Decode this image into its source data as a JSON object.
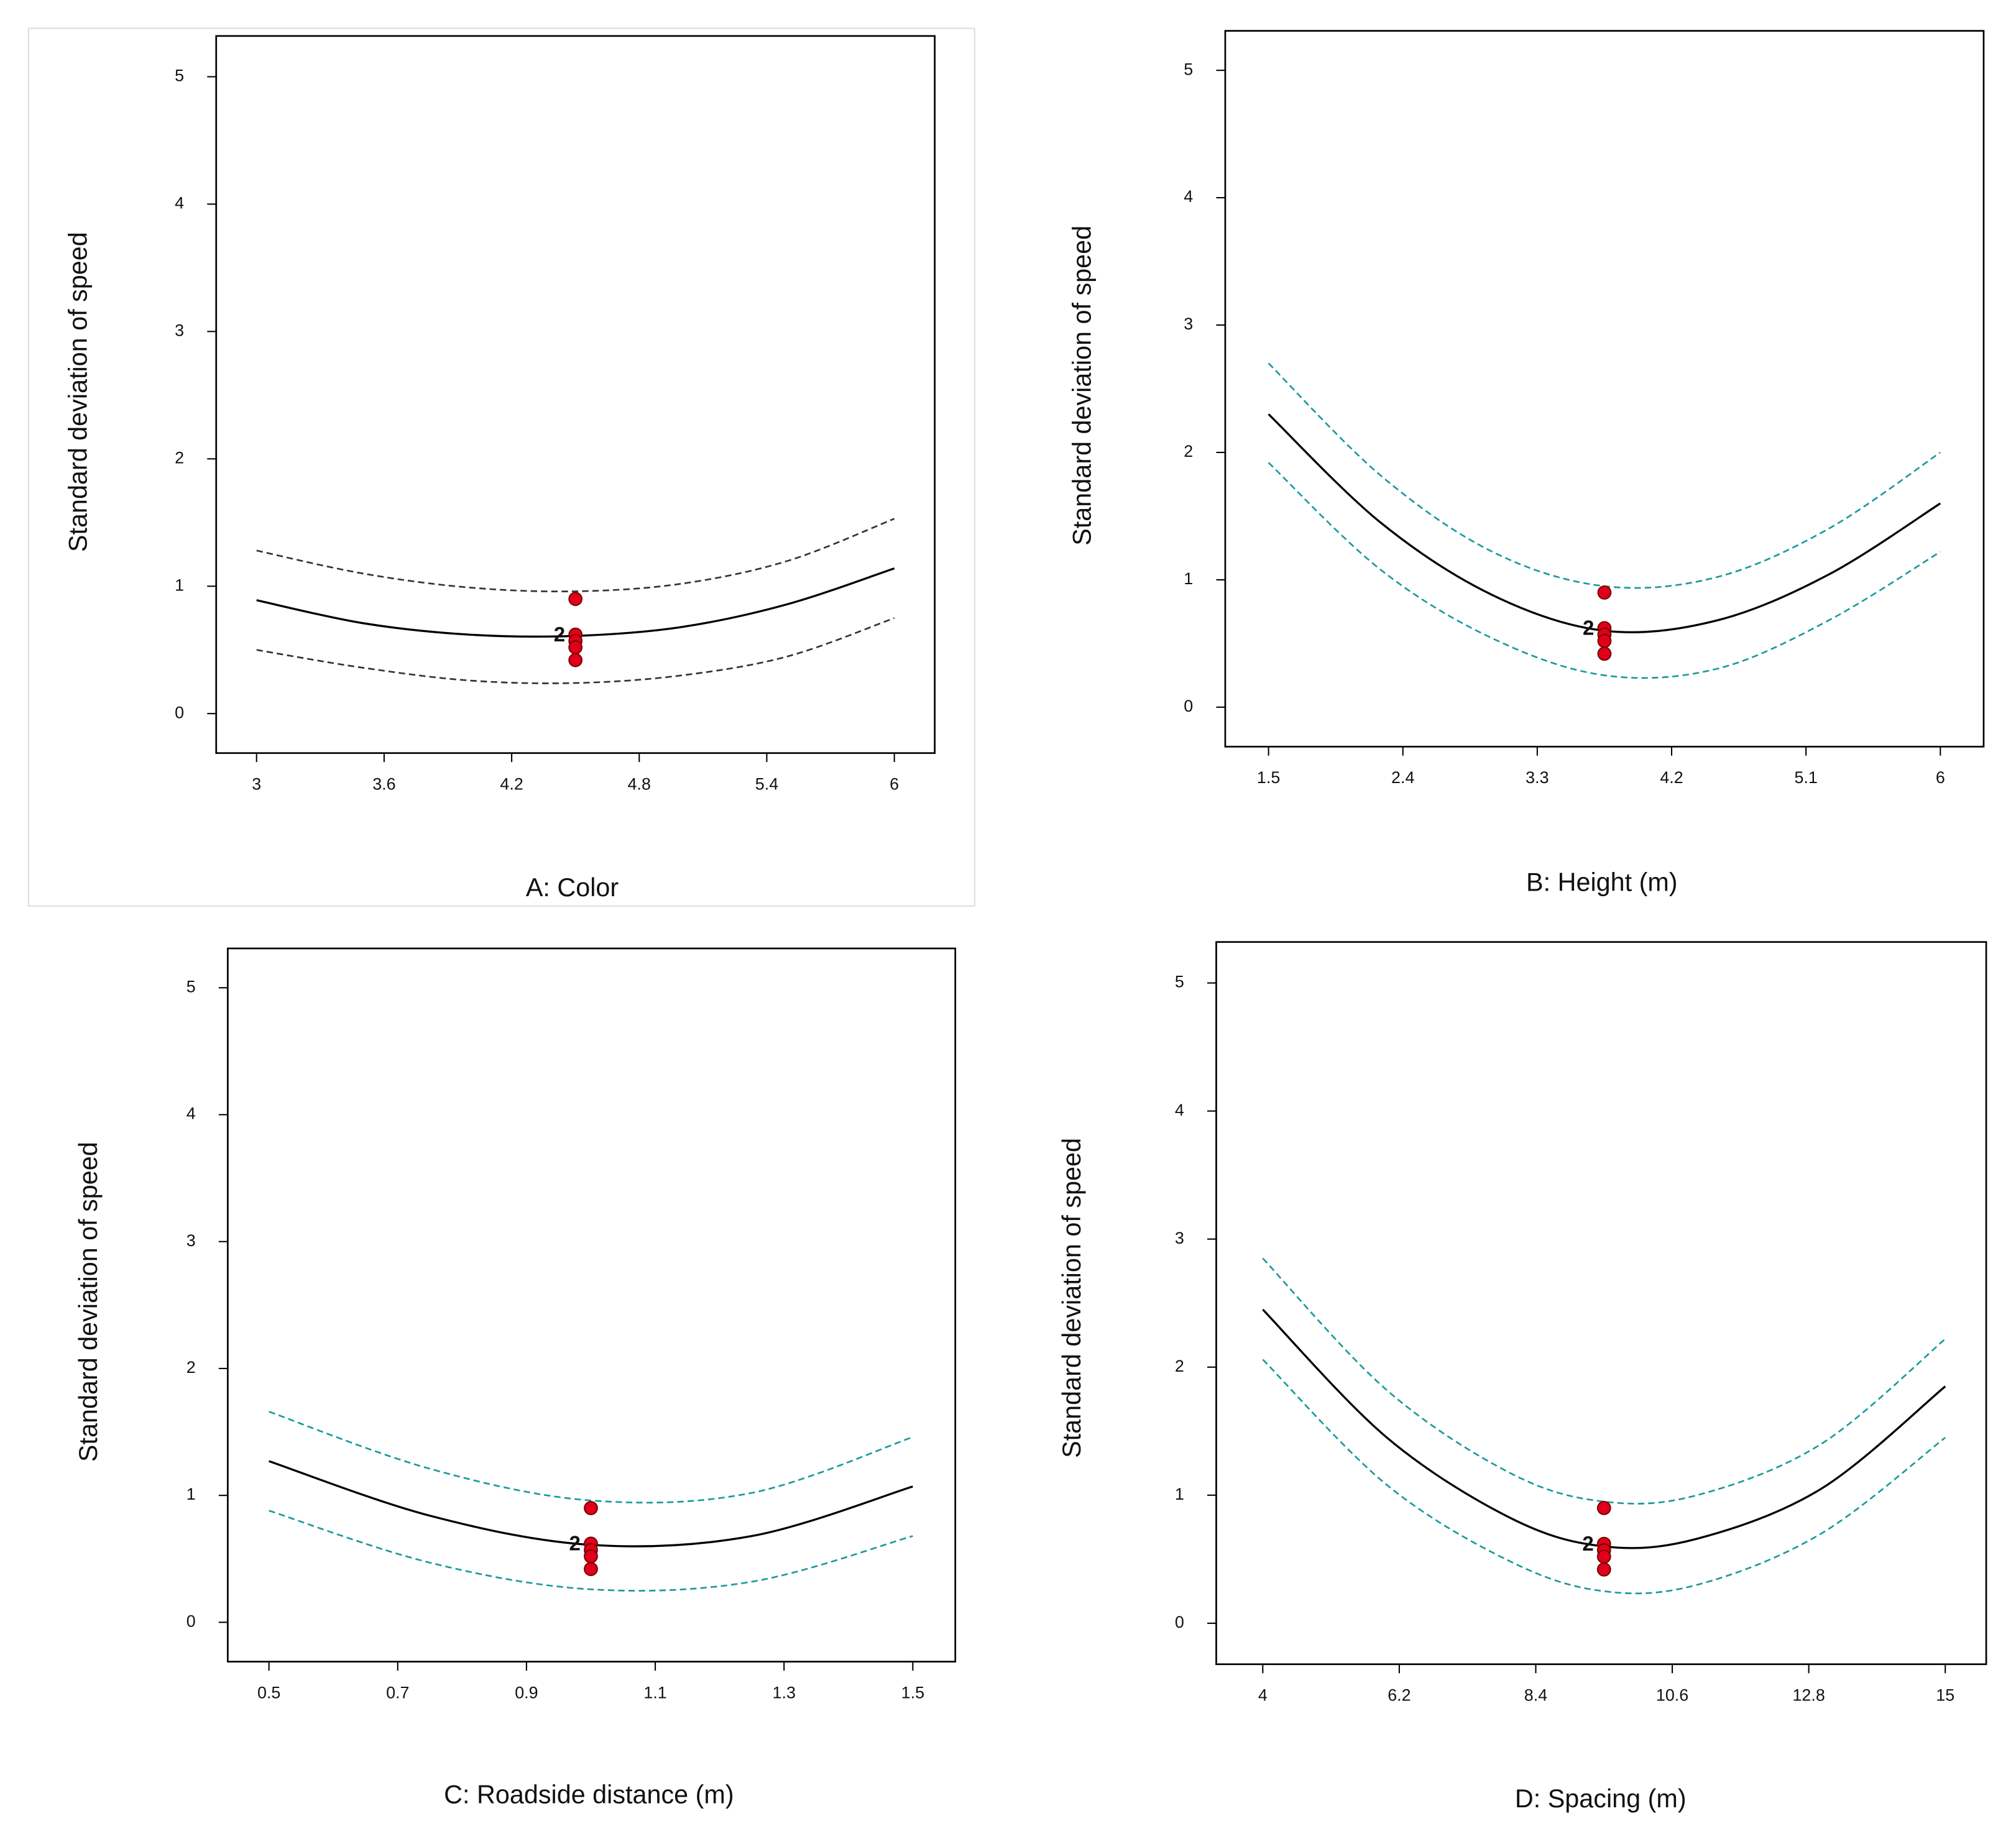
{
  "chart_data": [
    {
      "type": "line",
      "x_label": "A: Color",
      "y_label": "Standard deviation of speed",
      "x": [
        3,
        3.5,
        4,
        4.5,
        5,
        5.5,
        6
      ],
      "series": [
        {
          "color": "#000000",
          "style": "solid",
          "values": [
            0.89,
            0.71,
            0.62,
            0.61,
            0.68,
            0.86,
            1.14
          ]
        },
        {
          "color": "#333333",
          "style": "dashed",
          "values": [
            1.28,
            1.1,
            0.99,
            0.96,
            1.02,
            1.2,
            1.53
          ]
        },
        {
          "color": "#333333",
          "style": "dashed",
          "values": [
            0.5,
            0.36,
            0.26,
            0.24,
            0.3,
            0.45,
            0.75
          ]
        }
      ],
      "points": {
        "color": "#e0001a",
        "x": [
          4.5,
          4.5,
          4.5,
          4.5,
          4.5
        ],
        "y": [
          0.9,
          0.62,
          0.57,
          0.52,
          0.42
        ]
      },
      "annotation": {
        "text": "2",
        "x": 4.5,
        "y": 0.61
      },
      "xlim": [
        2.81,
        6.19
      ],
      "ylim": [
        -0.31,
        5.32
      ],
      "xticks": [
        3,
        3.6,
        4.2,
        4.8,
        5.4,
        6
      ],
      "yticks": [
        0,
        1,
        2,
        3,
        4,
        5
      ]
    },
    {
      "type": "line",
      "x_label": "B: Height (m)",
      "y_label": "Standard deviation of speed",
      "x": [
        1.5,
        2.25,
        3,
        3.75,
        4.5,
        5.25,
        6
      ],
      "series": [
        {
          "color": "#000000",
          "style": "solid",
          "values": [
            2.3,
            1.45,
            0.88,
            0.6,
            0.68,
            1.04,
            1.6
          ]
        },
        {
          "color": "#1a9a9a",
          "style": "dashed",
          "values": [
            2.7,
            1.82,
            1.22,
            0.95,
            1.02,
            1.4,
            2.0
          ]
        },
        {
          "color": "#1a9a9a",
          "style": "dashed",
          "values": [
            1.92,
            1.08,
            0.54,
            0.25,
            0.3,
            0.68,
            1.22
          ]
        }
      ],
      "points": {
        "color": "#e0001a",
        "x": [
          3.75,
          3.75,
          3.75,
          3.75,
          3.75
        ],
        "y": [
          0.9,
          0.62,
          0.57,
          0.52,
          0.42
        ]
      },
      "annotation": {
        "text": "2",
        "x": 3.75,
        "y": 0.61
      },
      "xlim": [
        1.21,
        6.29
      ],
      "ylim": [
        -0.31,
        5.31
      ],
      "xticks": [
        1.5,
        2.4,
        3.3,
        4.2,
        5.1,
        6
      ],
      "yticks": [
        0,
        1,
        2,
        3,
        4,
        5
      ]
    },
    {
      "type": "line",
      "x_label": "C: Roadside distance (m)",
      "y_label": "Standard deviation of speed",
      "x": [
        0.5,
        0.75,
        1.0,
        1.25,
        1.5
      ],
      "series": [
        {
          "color": "#000000",
          "style": "solid",
          "values": [
            1.27,
            0.84,
            0.61,
            0.68,
            1.07
          ]
        },
        {
          "color": "#1a9a9a",
          "style": "dashed",
          "values": [
            1.66,
            1.21,
            0.96,
            1.02,
            1.46
          ]
        },
        {
          "color": "#1a9a9a",
          "style": "dashed",
          "values": [
            0.88,
            0.47,
            0.26,
            0.32,
            0.68
          ]
        }
      ],
      "points": {
        "color": "#e0001a",
        "x": [
          1.0,
          1.0,
          1.0,
          1.0,
          1.0
        ],
        "y": [
          0.9,
          0.62,
          0.57,
          0.52,
          0.42
        ]
      },
      "annotation": {
        "text": "2",
        "x": 1.0,
        "y": 0.61
      },
      "xlim": [
        0.436,
        1.566
      ],
      "ylim": [
        -0.31,
        5.31
      ],
      "xticks": [
        0.5,
        0.7,
        0.9,
        1.1,
        1.3,
        1.5
      ],
      "yticks": [
        0,
        1,
        2,
        3,
        4,
        5
      ]
    },
    {
      "type": "line",
      "x_label": "D: Spacing (m)",
      "y_label": "Standard deviation of speed",
      "x": [
        4,
        6,
        8,
        9.5,
        11,
        13,
        15
      ],
      "series": [
        {
          "color": "#000000",
          "style": "solid",
          "values": [
            2.45,
            1.45,
            0.82,
            0.6,
            0.66,
            1.05,
            1.85
          ]
        },
        {
          "color": "#1a9a9a",
          "style": "dashed",
          "values": [
            2.85,
            1.82,
            1.17,
            0.95,
            1.0,
            1.4,
            2.22
          ]
        },
        {
          "color": "#1a9a9a",
          "style": "dashed",
          "values": [
            2.06,
            1.08,
            0.48,
            0.25,
            0.3,
            0.7,
            1.45
          ]
        }
      ],
      "points": {
        "color": "#e0001a",
        "x": [
          9.5,
          9.5,
          9.5,
          9.5,
          9.5
        ],
        "y": [
          0.9,
          0.62,
          0.57,
          0.52,
          0.42
        ]
      },
      "annotation": {
        "text": "2",
        "x": 9.5,
        "y": 0.61
      },
      "xlim": [
        3.25,
        15.66
      ],
      "ylim": [
        -0.32,
        5.32
      ],
      "xticks": [
        4,
        6.2,
        8.4,
        10.6,
        12.8,
        15
      ],
      "yticks": [
        0,
        1,
        2,
        3,
        4,
        5
      ]
    }
  ]
}
